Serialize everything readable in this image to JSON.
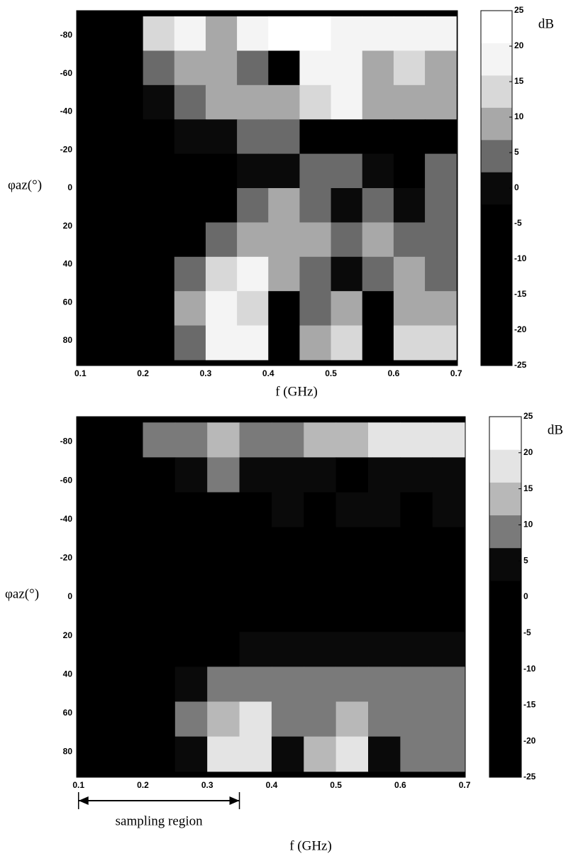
{
  "chart_data": [
    {
      "type": "heatmap",
      "x_label": "f (GHz)",
      "y_label": "φaz(°)",
      "colorbar_label": "dB",
      "x": [
        0.125,
        0.175,
        0.225,
        0.275,
        0.325,
        0.375,
        0.425,
        0.475,
        0.525,
        0.575,
        0.625,
        0.675
      ],
      "y": [
        -81,
        -63,
        -45,
        -27,
        -9,
        9,
        27,
        45,
        63,
        81
      ],
      "z": [
        [
          -25,
          -20,
          15,
          18,
          12,
          22,
          25,
          25,
          20,
          22,
          22,
          22
        ],
        [
          -25,
          -22,
          5,
          10,
          8,
          3,
          -5,
          20,
          22,
          10,
          15,
          12
        ],
        [
          -25,
          -20,
          0,
          5,
          8,
          10,
          12,
          15,
          18,
          12,
          8,
          10
        ],
        [
          -25,
          -20,
          -5,
          0,
          2,
          3,
          5,
          -10,
          -15,
          -10,
          -15,
          -10
        ],
        [
          -25,
          -22,
          -10,
          -5,
          -5,
          -2,
          0,
          5,
          5,
          0,
          -5,
          3
        ],
        [
          -25,
          -22,
          -15,
          -10,
          -5,
          5,
          8,
          5,
          0,
          5,
          0,
          3
        ],
        [
          -25,
          -22,
          -15,
          -8,
          5,
          12,
          10,
          8,
          5,
          8,
          5,
          5
        ],
        [
          -25,
          -20,
          -12,
          5,
          15,
          18,
          10,
          5,
          0,
          5,
          8,
          5
        ],
        [
          -25,
          -20,
          -8,
          10,
          22,
          15,
          -10,
          5,
          10,
          -10,
          12,
          10
        ],
        [
          -25,
          -18,
          -5,
          5,
          22,
          18,
          -15,
          10,
          15,
          -15,
          15,
          15
        ]
      ],
      "xlim": [
        0.094,
        0.702
      ],
      "xticks": [
        0.1,
        0.2,
        0.3,
        0.4,
        0.5,
        0.6,
        0.7
      ],
      "ylim": [
        -93,
        93
      ],
      "yticks": [
        -80,
        -60,
        -40,
        -20,
        0,
        20,
        40,
        60,
        80
      ],
      "clim": [
        -25,
        25
      ],
      "cticks": [
        25,
        20,
        15,
        10,
        5,
        0,
        -5,
        -10,
        -15,
        -20,
        -25
      ],
      "colormap": [
        "#000000",
        "#000000",
        "#000000",
        "#000000",
        "#000000",
        "#0a0a0a",
        "#6a6a6a",
        "#a8a8a8",
        "#d8d8d8",
        "#f4f4f4",
        "#ffffff"
      ]
    },
    {
      "type": "heatmap",
      "x_label": "f (GHz)",
      "y_label": "φaz(°)",
      "colorbar_label": "dB",
      "x": [
        0.125,
        0.175,
        0.225,
        0.275,
        0.325,
        0.375,
        0.425,
        0.475,
        0.525,
        0.575,
        0.625,
        0.675
      ],
      "y": [
        -81,
        -63,
        -45,
        -27,
        -9,
        9,
        27,
        45,
        63,
        81
      ],
      "z": [
        [
          -25,
          -20,
          8,
          12,
          15,
          12,
          12,
          15,
          15,
          22,
          22,
          20
        ],
        [
          -25,
          -22,
          -5,
          5,
          10,
          5,
          3,
          5,
          -5,
          3,
          5,
          3
        ],
        [
          -25,
          -25,
          -15,
          -5,
          -5,
          0,
          5,
          0,
          3,
          5,
          0,
          3
        ],
        [
          -25,
          -25,
          -20,
          -15,
          -10,
          -10,
          -5,
          -3,
          -5,
          -5,
          -5,
          -5
        ],
        [
          -25,
          -25,
          -20,
          -20,
          -15,
          -10,
          -10,
          -10,
          -5,
          -5,
          -5,
          -5
        ],
        [
          -25,
          -25,
          -20,
          -15,
          -10,
          -10,
          -5,
          -5,
          -5,
          -3,
          -5,
          -5
        ],
        [
          -25,
          -25,
          -15,
          -8,
          -3,
          5,
          5,
          3,
          5,
          5,
          5,
          3
        ],
        [
          -25,
          -22,
          -10,
          5,
          8,
          12,
          12,
          8,
          10,
          8,
          10,
          8
        ],
        [
          -25,
          -20,
          -5,
          10,
          15,
          18,
          10,
          12,
          15,
          12,
          10,
          10
        ],
        [
          -25,
          -18,
          -5,
          5,
          18,
          20,
          5,
          15,
          18,
          5,
          12,
          12
        ]
      ],
      "xlim": [
        0.097,
        0.701
      ],
      "xticks": [
        0.1,
        0.2,
        0.3,
        0.4,
        0.5,
        0.6,
        0.7
      ],
      "ylim": [
        -93,
        93
      ],
      "yticks": [
        -80,
        -60,
        -40,
        -20,
        0,
        20,
        40,
        60,
        80
      ],
      "clim": [
        -25,
        25
      ],
      "cticks": [
        25,
        20,
        15,
        10,
        5,
        0,
        -5,
        -10,
        -15,
        -20,
        -25
      ],
      "colormap": [
        "#000000",
        "#000000",
        "#000000",
        "#000000",
        "#000000",
        "#000000",
        "#0a0a0a",
        "#7a7a7a",
        "#b8b8b8",
        "#e4e4e4",
        "#ffffff"
      ],
      "annotation": {
        "text": "sampling region",
        "x": [
          0.1,
          0.35
        ]
      }
    }
  ]
}
